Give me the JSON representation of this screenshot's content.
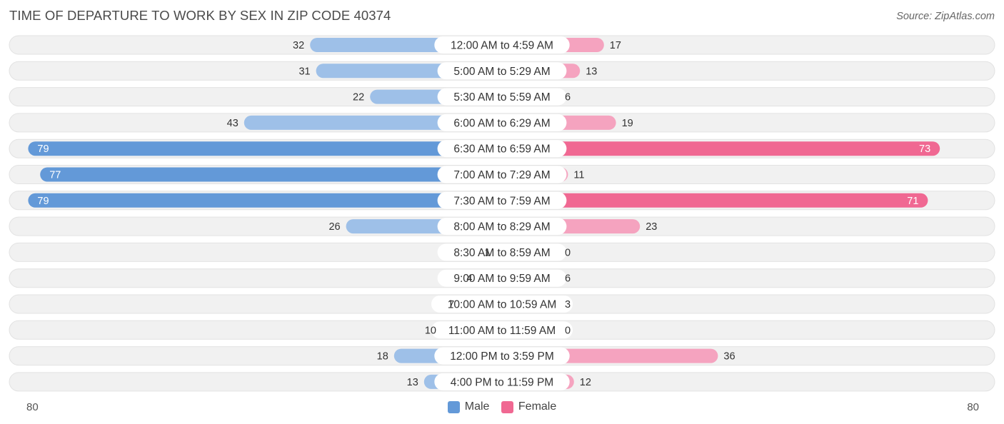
{
  "title": "TIME OF DEPARTURE TO WORK BY SEX IN ZIP CODE 40374",
  "source": "Source: ZipAtlas.com",
  "colors": {
    "male_strong": "#6399d8",
    "male_light": "#9ec0e8",
    "female_strong": "#f06892",
    "female_light": "#f5a3bf",
    "track": "#f1f1f1"
  },
  "chart_data": {
    "type": "bar",
    "orientation": "horizontal-diverging",
    "title": "TIME OF DEPARTURE TO WORK BY SEX IN ZIP CODE 40374",
    "categories": [
      "12:00 AM to 4:59 AM",
      "5:00 AM to 5:29 AM",
      "5:30 AM to 5:59 AM",
      "6:00 AM to 6:29 AM",
      "6:30 AM to 6:59 AM",
      "7:00 AM to 7:29 AM",
      "7:30 AM to 7:59 AM",
      "8:00 AM to 8:29 AM",
      "8:30 AM to 8:59 AM",
      "9:00 AM to 9:59 AM",
      "10:00 AM to 10:59 AM",
      "11:00 AM to 11:59 AM",
      "12:00 PM to 3:59 PM",
      "4:00 PM to 11:59 PM"
    ],
    "series": [
      {
        "name": "Male",
        "values": [
          32,
          31,
          22,
          43,
          79,
          77,
          79,
          26,
          1,
          4,
          7,
          10,
          18,
          13
        ]
      },
      {
        "name": "Female",
        "values": [
          17,
          13,
          6,
          19,
          73,
          11,
          71,
          23,
          0,
          6,
          3,
          0,
          36,
          12
        ]
      }
    ],
    "xlim": [
      -80,
      80
    ],
    "axis_labels": {
      "left": "80",
      "right": "80"
    },
    "legend": {
      "position": "bottom-center",
      "entries": [
        "Male",
        "Female"
      ]
    }
  }
}
